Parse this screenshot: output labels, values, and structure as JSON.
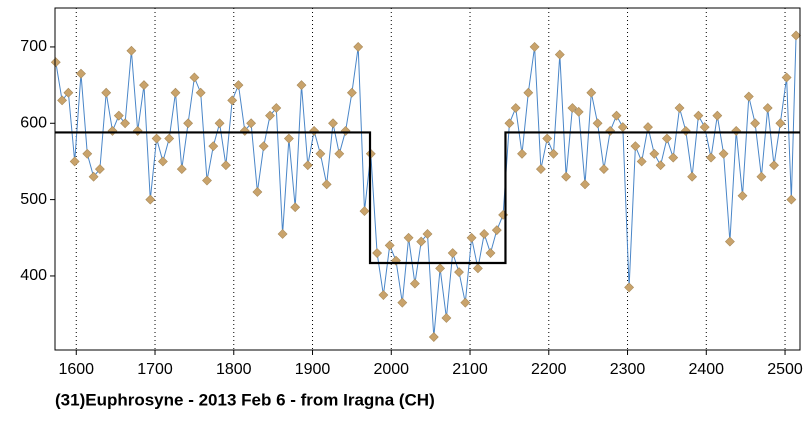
{
  "chart_data": {
    "type": "line",
    "title": "(31)Euphrosyne - 2013 Feb 6 - from Iragna (CH)",
    "xlim": [
      1573,
      2519
    ],
    "ylim": [
      303,
      751
    ],
    "xticks": [
      1600,
      1700,
      1800,
      1900,
      2000,
      2100,
      2200,
      2300,
      2400,
      2500
    ],
    "yticks": [
      400,
      500,
      600,
      700
    ],
    "grid": true,
    "series": [
      {
        "color": "#4a86c8",
        "marker_color": "#c9a36b",
        "x": [
          1574,
          1582,
          1590,
          1598,
          1606,
          1614,
          1622,
          1630,
          1638,
          1646,
          1654,
          1662,
          1670,
          1678,
          1686,
          1694,
          1702,
          1710,
          1718,
          1726,
          1734,
          1742,
          1750,
          1758,
          1766,
          1774,
          1782,
          1790,
          1798,
          1806,
          1814,
          1822,
          1830,
          1838,
          1846,
          1854,
          1862,
          1870,
          1878,
          1886,
          1894,
          1902,
          1910,
          1918,
          1926,
          1934,
          1942,
          1950,
          1958,
          1966,
          1974,
          1982,
          1990,
          1998,
          2006,
          2014,
          2022,
          2030,
          2038,
          2046,
          2054,
          2062,
          2070,
          2078,
          2086,
          2094,
          2102,
          2110,
          2118,
          2126,
          2134,
          2142,
          2150,
          2158,
          2166,
          2174,
          2182,
          2190,
          2198,
          2206,
          2214,
          2222,
          2230,
          2238,
          2246,
          2254,
          2262,
          2270,
          2278,
          2286,
          2294,
          2302,
          2310,
          2318,
          2326,
          2334,
          2342,
          2350,
          2358,
          2366,
          2374,
          2382,
          2390,
          2398,
          2406,
          2414,
          2422,
          2430,
          2438,
          2446,
          2454,
          2462,
          2470,
          2478,
          2486,
          2494,
          2502,
          2508,
          2514
        ],
        "values": [
          680,
          630,
          640,
          550,
          665,
          560,
          530,
          540,
          640,
          590,
          610,
          600,
          695,
          590,
          650,
          500,
          580,
          550,
          580,
          640,
          540,
          600,
          660,
          640,
          525,
          570,
          600,
          545,
          630,
          650,
          590,
          600,
          510,
          570,
          610,
          620,
          455,
          580,
          490,
          650,
          545,
          590,
          560,
          520,
          600,
          560,
          590,
          640,
          700,
          485,
          560,
          430,
          375,
          440,
          420,
          365,
          450,
          390,
          445,
          455,
          320,
          410,
          345,
          430,
          405,
          365,
          450,
          410,
          455,
          430,
          460,
          480,
          600,
          620,
          560,
          640,
          700,
          540,
          580,
          560,
          690,
          530,
          620,
          615,
          520,
          640,
          600,
          540,
          590,
          610,
          595,
          385,
          570,
          550,
          595,
          560,
          545,
          580,
          555,
          620,
          590,
          530,
          610,
          595,
          555,
          610,
          560,
          445,
          590,
          505,
          635,
          600,
          530,
          620,
          545,
          600,
          660,
          500,
          715
        ]
      },
      {
        "color": "#000000",
        "x": [
          1573,
          1973,
          1973,
          2145,
          2145,
          2519
        ],
        "values": [
          588,
          588,
          417,
          417,
          588,
          588
        ]
      }
    ]
  }
}
